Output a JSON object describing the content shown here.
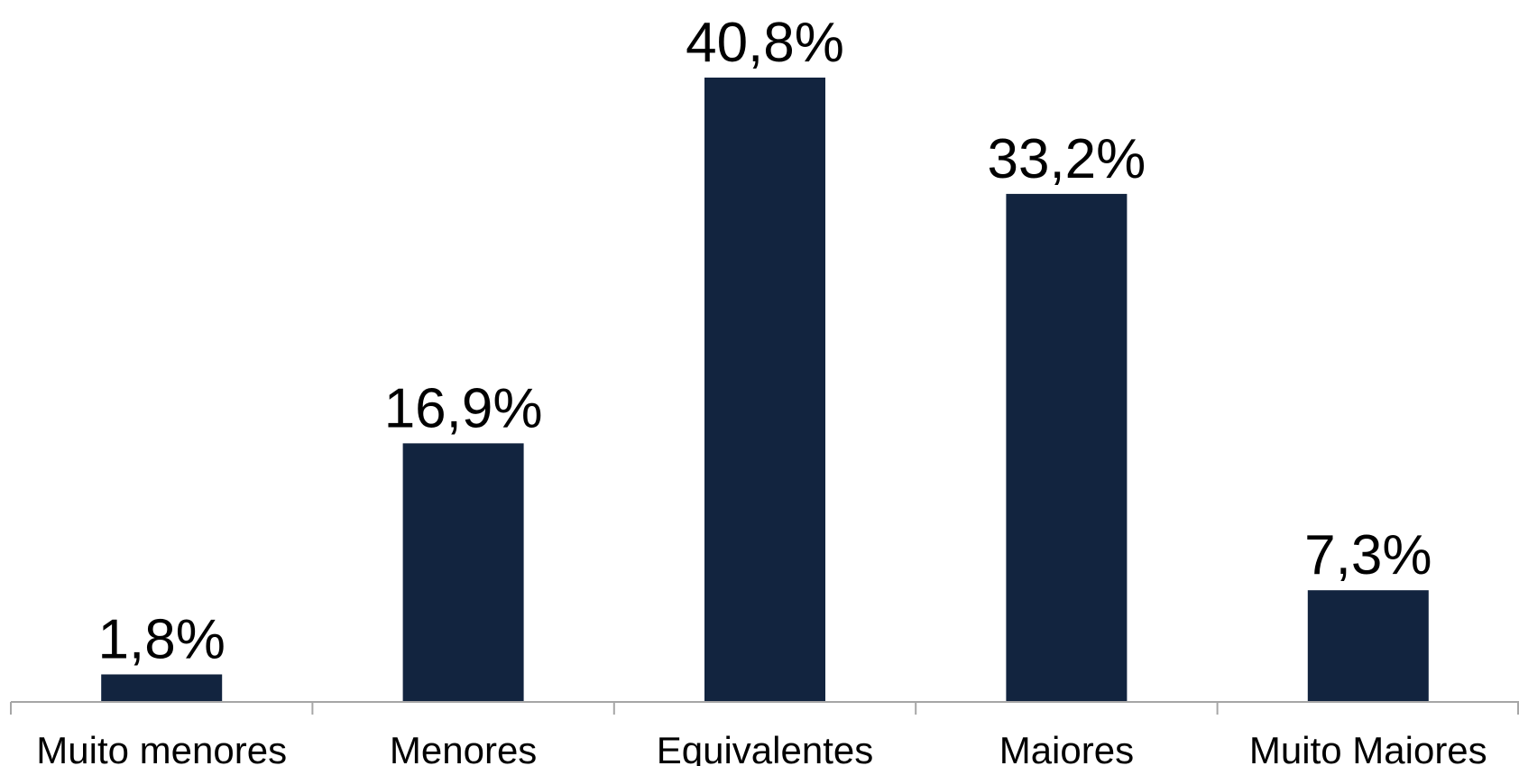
{
  "chart_data": {
    "type": "bar",
    "categories": [
      "Muito menores",
      "Menores",
      "Equivalentes",
      "Maiores",
      "Muito Maiores"
    ],
    "values": [
      1.8,
      16.9,
      40.8,
      33.2,
      7.3
    ],
    "data_labels": [
      "1,8%",
      "16,9%",
      "40,8%",
      "33,2%",
      "7,3%"
    ],
    "ylim": [
      0,
      40.8
    ],
    "grid": false,
    "legend": "none",
    "bar_color": "#12243f",
    "axis_color": "#a6a6a6"
  }
}
